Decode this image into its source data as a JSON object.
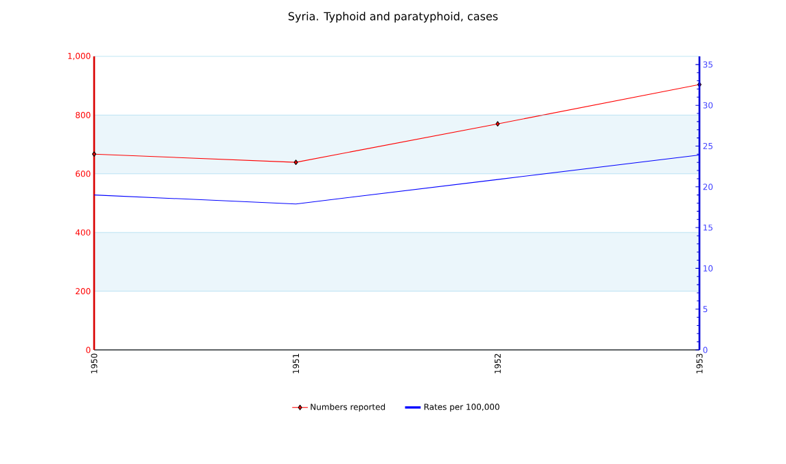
{
  "chart_data": {
    "type": "line",
    "title": "Syria. Typhoid and paratyphoid, cases",
    "categories": [
      "1950",
      "1951",
      "1952",
      "1953"
    ],
    "series": [
      {
        "name": "Numbers reported",
        "color": "#ff0000",
        "values": [
          667,
          639,
          770,
          904
        ],
        "marker": "diamond"
      },
      {
        "name": "Rates per 100,000",
        "color": "#0000ff",
        "values": [
          19.0,
          17.9,
          20.9,
          23.9
        ],
        "axis": "y2",
        "marker": "none"
      }
    ],
    "ylim": [
      0,
      1000
    ],
    "yticks": [
      0,
      200,
      400,
      600,
      800,
      {
        "value": 1000,
        "label": "1,000"
      }
    ],
    "y2lim": [
      0,
      36
    ],
    "y2ticks": [
      0,
      5,
      10,
      15,
      20,
      25,
      30,
      35
    ],
    "bands": [
      {
        "axis": "y",
        "from": 200,
        "to": 400,
        "color": "#ebf6fb"
      },
      {
        "axis": "y",
        "from": 600,
        "to": 800,
        "color": "#ebf6fb"
      }
    ],
    "grid": "y",
    "legend": "bottom"
  }
}
